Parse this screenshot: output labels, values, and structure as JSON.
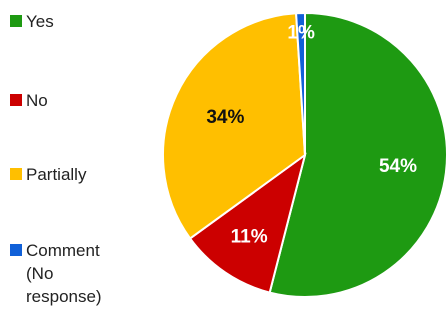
{
  "chart_data": {
    "type": "pie",
    "slices": [
      {
        "label": "Yes",
        "value": 54,
        "value_label": "54%",
        "color": "#1e9a12",
        "label_color": "#ffffff"
      },
      {
        "label": "No",
        "value": 11,
        "value_label": "11%",
        "color": "#cc0000",
        "label_color": "#ffffff"
      },
      {
        "label": "Partially",
        "value": 34,
        "value_label": "34%",
        "color": "#ffbf00",
        "label_color": "#111111"
      },
      {
        "label": "Comment (No response)",
        "value": 1,
        "value_label": "1%",
        "color": "#1060d8",
        "label_color": "#ffffff"
      }
    ],
    "start": "top",
    "direction": "clockwise",
    "legend_position": "left"
  }
}
